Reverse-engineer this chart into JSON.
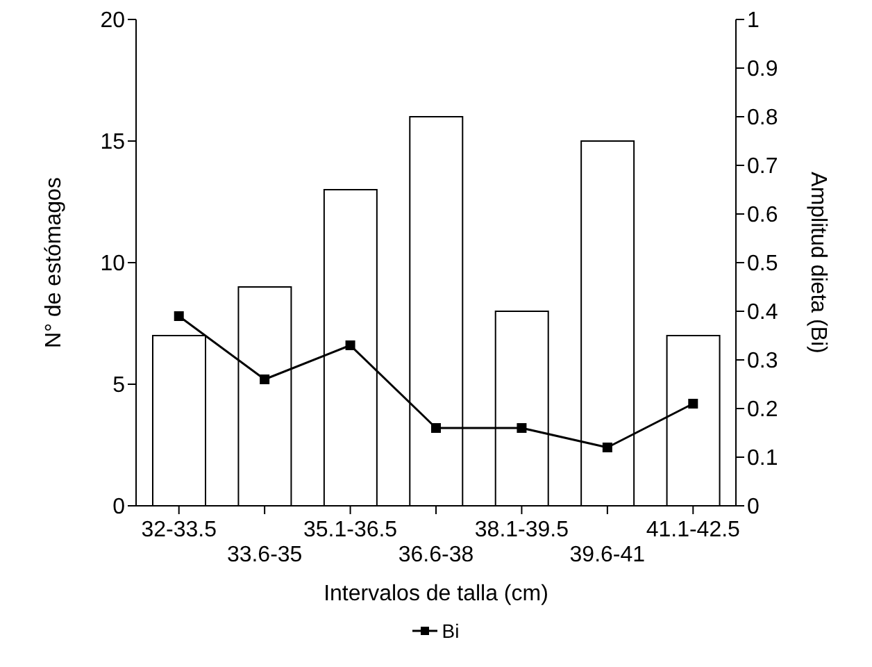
{
  "chart_data": {
    "type": "bar",
    "xlabel": "Intervalos de talla (cm)",
    "ylabel": "N° de estómagos",
    "y2label": "Amplitud dieta (Bi)",
    "categories": [
      "32-33.5",
      "33.6-35",
      "35.1-36.5",
      "36.6-38",
      "38.1-39.5",
      "39.6-41",
      "41.1-42.5"
    ],
    "series": [
      {
        "color": "#ffffff",
        "values": [
          7,
          9,
          13,
          16,
          8,
          15,
          7
        ]
      },
      {
        "type": "line",
        "name": "Bi",
        "color": "#000000",
        "axis": "y2",
        "marker": "square",
        "values": [
          0.39,
          0.26,
          0.33,
          0.16,
          0.16,
          0.12,
          0.21
        ]
      }
    ],
    "ylim": [
      0,
      20
    ],
    "yticks": [
      0,
      5,
      10,
      15,
      20
    ],
    "y2lim": [
      0,
      1
    ],
    "y2ticks": [
      0,
      0.1,
      0.2,
      0.3,
      0.4,
      0.5,
      0.6,
      0.7,
      0.8,
      0.9,
      1
    ],
    "grid": false,
    "legend": "bottom"
  }
}
